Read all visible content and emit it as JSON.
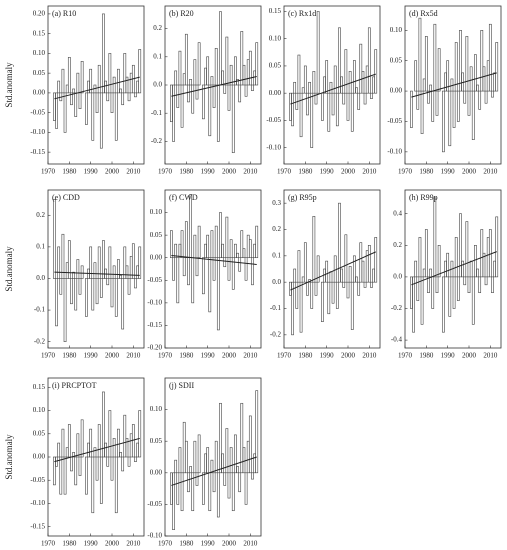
{
  "chart_data": [
    {
      "type": "bar",
      "title": "(a) R10",
      "ylabel": "Std.anomaly",
      "x": [
        1973,
        1974,
        1975,
        1976,
        1977,
        1978,
        1979,
        1980,
        1981,
        1982,
        1983,
        1984,
        1985,
        1986,
        1987,
        1988,
        1989,
        1990,
        1991,
        1992,
        1993,
        1994,
        1995,
        1996,
        1997,
        1998,
        1999,
        2000,
        2001,
        2002,
        2003,
        2004,
        2005,
        2006,
        2007,
        2008,
        2009,
        2010,
        2011,
        2012,
        2013
      ],
      "values": [
        -0.07,
        -0.09,
        0.03,
        -0.02,
        0.06,
        -0.1,
        0.02,
        0.09,
        -0.03,
        0.01,
        -0.06,
        0.05,
        -0.04,
        0.08,
        0.0,
        -0.08,
        0.03,
        0.06,
        -0.12,
        0.02,
        -0.05,
        0.07,
        -0.14,
        0.2,
        0.03,
        -0.02,
        0.1,
        -0.05,
        0.04,
        -0.12,
        0.06,
        0.01,
        -0.03,
        0.1,
        0.04,
        -0.02,
        0.05,
        0.07,
        -0.01,
        0.03,
        0.11
      ],
      "trend": {
        "x": [
          1973,
          2013
        ],
        "values": [
          -0.015,
          0.04
        ]
      },
      "xlim": [
        1970,
        2015
      ],
      "xticks": [
        1970,
        1980,
        1990,
        2000,
        2010
      ],
      "ylim": [
        -0.18,
        0.22
      ],
      "yticks": [
        {
          "value": -0.15,
          "label": "-0.15"
        },
        {
          "value": -0.1,
          "label": "-0.10"
        },
        -0.05,
        {
          "value": 0,
          "label": "0.00"
        },
        0.05,
        {
          "value": 0.1,
          "label": "0.10"
        },
        0.15,
        {
          "value": 0.2,
          "label": "0.20"
        }
      ]
    },
    {
      "type": "bar",
      "title": "(b) R20",
      "x": [
        1973,
        1974,
        1975,
        1976,
        1977,
        1978,
        1979,
        1980,
        1981,
        1982,
        1983,
        1984,
        1985,
        1986,
        1987,
        1988,
        1989,
        1990,
        1991,
        1992,
        1993,
        1994,
        1995,
        1996,
        1997,
        1998,
        1999,
        2000,
        2001,
        2002,
        2003,
        2004,
        2005,
        2006,
        2007,
        2008,
        2009,
        2010,
        2011,
        2012,
        2013
      ],
      "values": [
        -0.13,
        -0.2,
        0.05,
        -0.08,
        0.12,
        -0.15,
        0.04,
        0.18,
        -0.06,
        0.02,
        -0.1,
        0.09,
        -0.05,
        0.15,
        0.0,
        -0.12,
        0.06,
        0.1,
        -0.18,
        0.03,
        -0.08,
        0.13,
        -0.2,
        0.26,
        0.05,
        -0.03,
        0.17,
        -0.09,
        0.07,
        -0.24,
        0.1,
        0.02,
        -0.06,
        0.19,
        0.07,
        -0.04,
        0.09,
        0.12,
        -0.02,
        0.05,
        0.15
      ],
      "trend": {
        "x": [
          1973,
          2013
        ],
        "values": [
          -0.04,
          0.03
        ]
      },
      "xlim": [
        1970,
        2015
      ],
      "xticks": [
        1970,
        1980,
        1990,
        2000,
        2010
      ],
      "ylim": [
        -0.28,
        0.28
      ],
      "yticks": [
        -0.2,
        -0.1,
        {
          "value": 0,
          "label": "0.0"
        },
        0.1,
        0.2
      ]
    },
    {
      "type": "bar",
      "title": "(c) Rx1d",
      "x": [
        1973,
        1974,
        1975,
        1976,
        1977,
        1978,
        1979,
        1980,
        1981,
        1982,
        1983,
        1984,
        1985,
        1986,
        1987,
        1988,
        1989,
        1990,
        1991,
        1992,
        1993,
        1994,
        1995,
        1996,
        1997,
        1998,
        1999,
        2000,
        2001,
        2002,
        2003,
        2004,
        2005,
        2006,
        2007,
        2008,
        2009,
        2010,
        2011,
        2012,
        2013
      ],
      "values": [
        -0.05,
        -0.06,
        0.02,
        -0.03,
        0.07,
        -0.08,
        0.01,
        0.05,
        -0.04,
        0.02,
        -0.1,
        0.04,
        -0.02,
        0.15,
        0.0,
        -0.05,
        0.03,
        0.06,
        -0.07,
        0.02,
        -0.04,
        0.05,
        -0.06,
        0.12,
        0.03,
        -0.02,
        0.08,
        -0.05,
        0.04,
        -0.07,
        0.06,
        0.01,
        -0.03,
        0.09,
        0.04,
        -0.02,
        0.05,
        0.12,
        -0.01,
        0.03,
        0.08
      ],
      "trend": {
        "x": [
          1973,
          2013
        ],
        "values": [
          -0.02,
          0.035
        ]
      },
      "xlim": [
        1970,
        2015
      ],
      "xticks": [
        1970,
        1980,
        1990,
        2000,
        2010
      ],
      "ylim": [
        -0.13,
        0.16
      ],
      "yticks": [
        {
          "value": -0.1,
          "label": "-0.10"
        },
        -0.05,
        {
          "value": 0,
          "label": "0.00"
        },
        0.05,
        {
          "value": 0.1,
          "label": "0.10"
        },
        0.15
      ]
    },
    {
      "type": "bar",
      "title": "(d) Rx5d",
      "x": [
        1973,
        1974,
        1975,
        1976,
        1977,
        1978,
        1979,
        1980,
        1981,
        1982,
        1983,
        1984,
        1985,
        1986,
        1987,
        1988,
        1989,
        1990,
        1991,
        1992,
        1993,
        1994,
        1995,
        1996,
        1997,
        1998,
        1999,
        2000,
        2001,
        2002,
        2003,
        2004,
        2005,
        2006,
        2007,
        2008,
        2009,
        2010,
        2011,
        2012,
        2013
      ],
      "values": [
        -0.06,
        0.0,
        0.05,
        -0.03,
        0.12,
        -0.07,
        0.02,
        0.09,
        -0.02,
        0.01,
        -0.05,
        0.11,
        -0.04,
        0.07,
        0.0,
        -0.1,
        0.03,
        0.05,
        -0.09,
        0.02,
        -0.06,
        0.08,
        -0.05,
        0.1,
        0.03,
        -0.02,
        0.09,
        -0.04,
        0.04,
        -0.08,
        0.06,
        0.01,
        -0.03,
        0.1,
        0.04,
        -0.02,
        0.05,
        0.11,
        -0.01,
        0.03,
        0.08
      ],
      "trend": {
        "x": [
          1973,
          2013
        ],
        "values": [
          -0.01,
          0.03
        ]
      },
      "xlim": [
        1970,
        2015
      ],
      "xticks": [
        1970,
        1980,
        1990,
        2000,
        2010
      ],
      "ylim": [
        -0.12,
        0.14
      ],
      "yticks": [
        {
          "value": -0.1,
          "label": "-0.10"
        },
        -0.05,
        {
          "value": 0,
          "label": "0.00"
        },
        0.05,
        {
          "value": 0.1,
          "label": "0.10"
        }
      ]
    },
    {
      "type": "bar",
      "title": "(e) CDD",
      "ylabel": "Std.anomaly",
      "x": [
        1973,
        1974,
        1975,
        1976,
        1977,
        1978,
        1979,
        1980,
        1981,
        1982,
        1983,
        1984,
        1985,
        1986,
        1987,
        1988,
        1989,
        1990,
        1991,
        1992,
        1993,
        1994,
        1995,
        1996,
        1997,
        1998,
        1999,
        2000,
        2001,
        2002,
        2003,
        2004,
        2005,
        2006,
        2007,
        2008,
        2009,
        2010,
        2011,
        2012,
        2013
      ],
      "values": [
        0.25,
        -0.15,
        0.1,
        -0.05,
        0.14,
        -0.2,
        0.05,
        0.12,
        -0.08,
        0.02,
        -0.1,
        0.06,
        -0.05,
        0.04,
        0.0,
        -0.12,
        0.03,
        0.1,
        -0.1,
        0.05,
        -0.08,
        0.1,
        -0.06,
        0.12,
        0.03,
        -0.02,
        0.1,
        -0.09,
        0.04,
        -0.12,
        0.06,
        0.01,
        -0.16,
        0.1,
        0.04,
        -0.05,
        0.07,
        0.11,
        -0.03,
        0.04,
        0.1
      ],
      "trend": {
        "x": [
          1973,
          2013
        ],
        "values": [
          0.02,
          0.01
        ]
      },
      "xlim": [
        1970,
        2015
      ],
      "xticks": [
        1970,
        1980,
        1990,
        2000,
        2010
      ],
      "ylim": [
        -0.22,
        0.28
      ],
      "yticks": [
        -0.2,
        -0.1,
        {
          "value": 0,
          "label": "0.0"
        },
        0.1,
        0.2
      ]
    },
    {
      "type": "bar",
      "title": "(f) CWD",
      "x": [
        1973,
        1974,
        1975,
        1976,
        1977,
        1978,
        1979,
        1980,
        1981,
        1982,
        1983,
        1984,
        1985,
        1986,
        1987,
        1988,
        1989,
        1990,
        1991,
        1992,
        1993,
        1994,
        1995,
        1996,
        1997,
        1998,
        1999,
        2000,
        2001,
        2002,
        2003,
        2004,
        2005,
        2006,
        2007,
        2008,
        2009,
        2010,
        2011,
        2012,
        2013
      ],
      "values": [
        0.06,
        -0.05,
        0.03,
        -0.1,
        0.03,
        0.06,
        -0.04,
        0.08,
        -0.06,
        0.14,
        -0.1,
        0.05,
        -0.04,
        0.07,
        0.0,
        -0.08,
        0.03,
        0.05,
        -0.12,
        0.06,
        -0.05,
        0.07,
        -0.16,
        0.1,
        0.03,
        -0.02,
        0.09,
        -0.05,
        0.04,
        -0.07,
        0.03,
        0.01,
        -0.03,
        0.06,
        0.02,
        -0.05,
        0.05,
        0.04,
        -0.06,
        0.03,
        0.07
      ],
      "trend": {
        "x": [
          1973,
          2013
        ],
        "values": [
          0.005,
          -0.015
        ]
      },
      "xlim": [
        1970,
        2015
      ],
      "xticks": [
        1970,
        1980,
        1990,
        2000,
        2010
      ],
      "ylim": [
        -0.2,
        0.15
      ],
      "yticks": [
        {
          "value": -0.2,
          "label": "-0.20"
        },
        -0.15,
        {
          "value": -0.1,
          "label": "-0.10"
        },
        -0.05,
        {
          "value": 0,
          "label": "0.00"
        },
        0.05,
        {
          "value": 0.1,
          "label": "0.10"
        }
      ]
    },
    {
      "type": "bar",
      "title": "(g) R95p",
      "x": [
        1973,
        1974,
        1975,
        1976,
        1977,
        1978,
        1979,
        1980,
        1981,
        1982,
        1983,
        1984,
        1985,
        1986,
        1987,
        1988,
        1989,
        1990,
        1991,
        1992,
        1993,
        1994,
        1995,
        1996,
        1997,
        1998,
        1999,
        2000,
        2001,
        2002,
        2003,
        2004,
        2005,
        2006,
        2007,
        2008,
        2009,
        2010,
        2011,
        2012,
        2013
      ],
      "values": [
        -0.05,
        -0.2,
        0.05,
        -0.1,
        0.12,
        -0.19,
        0.02,
        0.15,
        -0.05,
        0.01,
        -0.1,
        0.25,
        -0.05,
        0.1,
        0.0,
        -0.15,
        0.05,
        0.08,
        -0.12,
        0.04,
        -0.08,
        0.1,
        -0.1,
        0.3,
        0.05,
        -0.02,
        0.18,
        -0.06,
        0.06,
        -0.18,
        0.1,
        0.02,
        -0.05,
        0.15,
        0.08,
        -0.02,
        0.12,
        0.14,
        -0.02,
        0.05,
        0.17
      ],
      "trend": {
        "x": [
          1973,
          2013
        ],
        "values": [
          -0.03,
          0.115
        ]
      },
      "xlim": [
        1970,
        2015
      ],
      "xticks": [
        1970,
        1980,
        1990,
        2000,
        2010
      ],
      "ylim": [
        -0.25,
        0.35
      ],
      "yticks": [
        -0.2,
        -0.1,
        {
          "value": 0,
          "label": "0.0"
        },
        0.1,
        0.2,
        0.3
      ]
    },
    {
      "type": "bar",
      "title": "(h) R99p",
      "x": [
        1973,
        1974,
        1975,
        1976,
        1977,
        1978,
        1979,
        1980,
        1981,
        1982,
        1983,
        1984,
        1985,
        1986,
        1987,
        1988,
        1989,
        1990,
        1991,
        1992,
        1993,
        1994,
        1995,
        1996,
        1997,
        1998,
        1999,
        2000,
        2001,
        2002,
        2003,
        2004,
        2005,
        2006,
        2007,
        2008,
        2009,
        2010,
        2011,
        2012,
        2013
      ],
      "values": [
        -0.2,
        -0.35,
        0.1,
        -0.15,
        0.25,
        -0.3,
        0.05,
        0.3,
        -0.1,
        0.05,
        -0.2,
        0.5,
        -0.1,
        0.2,
        0.0,
        -0.35,
        0.1,
        0.15,
        -0.25,
        0.1,
        -0.2,
        0.25,
        -0.15,
        0.4,
        0.1,
        -0.05,
        0.35,
        -0.1,
        0.1,
        -0.3,
        0.2,
        0.05,
        -0.1,
        0.3,
        0.15,
        -0.05,
        0.25,
        0.3,
        -0.1,
        0.1,
        0.38
      ],
      "trend": {
        "x": [
          1973,
          2013
        ],
        "values": [
          -0.05,
          0.16
        ]
      },
      "xlim": [
        1970,
        2015
      ],
      "xticks": [
        1970,
        1980,
        1990,
        2000,
        2010
      ],
      "ylim": [
        -0.45,
        0.55
      ],
      "yticks": [
        -0.4,
        -0.2,
        {
          "value": 0,
          "label": "0.0"
        },
        0.2,
        0.4
      ]
    },
    {
      "type": "bar",
      "title": "(i) PRCPTOT",
      "ylabel": "Std.anomaly",
      "x": [
        1973,
        1974,
        1975,
        1976,
        1977,
        1978,
        1979,
        1980,
        1981,
        1982,
        1983,
        1984,
        1985,
        1986,
        1987,
        1988,
        1989,
        1990,
        1991,
        1992,
        1993,
        1994,
        1995,
        1996,
        1997,
        1998,
        1999,
        2000,
        2001,
        2002,
        2003,
        2004,
        2005,
        2006,
        2007,
        2008,
        2009,
        2010,
        2011,
        2012,
        2013
      ],
      "values": [
        -0.06,
        -0.02,
        0.03,
        -0.08,
        0.06,
        -0.08,
        0.02,
        0.07,
        -0.03,
        0.01,
        -0.06,
        0.05,
        -0.04,
        0.08,
        0.0,
        -0.08,
        0.03,
        0.06,
        -0.12,
        0.02,
        -0.05,
        0.07,
        -0.1,
        0.14,
        0.03,
        -0.02,
        0.1,
        -0.05,
        0.04,
        -0.12,
        0.06,
        0.01,
        -0.03,
        0.09,
        0.04,
        -0.02,
        0.05,
        0.07,
        -0.01,
        0.03,
        0.1
      ],
      "trend": {
        "x": [
          1973,
          2013
        ],
        "values": [
          -0.01,
          0.04
        ]
      },
      "xlim": [
        1970,
        2015
      ],
      "xticks": [
        1970,
        1980,
        1990,
        2000,
        2010
      ],
      "ylim": [
        -0.17,
        0.17
      ],
      "yticks": [
        -0.15,
        {
          "value": -0.1,
          "label": "-0.10"
        },
        -0.05,
        {
          "value": 0,
          "label": "0.00"
        },
        0.05,
        {
          "value": 0.1,
          "label": "0.10"
        },
        0.15
      ]
    },
    {
      "type": "bar",
      "title": "(j) SDII",
      "x": [
        1973,
        1974,
        1975,
        1976,
        1977,
        1978,
        1979,
        1980,
        1981,
        1982,
        1983,
        1984,
        1985,
        1986,
        1987,
        1988,
        1989,
        1990,
        1991,
        1992,
        1993,
        1994,
        1995,
        1996,
        1997,
        1998,
        1999,
        2000,
        2001,
        2002,
        2003,
        2004,
        2005,
        2006,
        2007,
        2008,
        2009,
        2010,
        2011,
        2012,
        2013
      ],
      "values": [
        -0.05,
        -0.09,
        0.02,
        -0.05,
        0.04,
        -0.06,
        0.08,
        0.05,
        -0.03,
        0.01,
        -0.06,
        0.05,
        -0.02,
        0.06,
        0.0,
        -0.05,
        0.03,
        0.04,
        -0.06,
        0.02,
        -0.03,
        0.05,
        -0.07,
        0.11,
        0.03,
        -0.02,
        0.07,
        -0.04,
        0.04,
        -0.06,
        0.06,
        0.01,
        -0.03,
        0.11,
        0.04,
        -0.05,
        0.05,
        0.09,
        -0.01,
        0.03,
        0.13
      ],
      "trend": {
        "x": [
          1973,
          2013
        ],
        "values": [
          -0.02,
          0.025
        ]
      },
      "xlim": [
        1970,
        2015
      ],
      "xticks": [
        1970,
        1980,
        1990,
        2000,
        2010
      ],
      "ylim": [
        -0.1,
        0.15
      ],
      "yticks": [
        {
          "value": -0.1,
          "label": "-0.10"
        },
        -0.05,
        {
          "value": 0,
          "label": "0.00"
        },
        0.05,
        {
          "value": 0.1,
          "label": "0.10"
        }
      ]
    }
  ]
}
